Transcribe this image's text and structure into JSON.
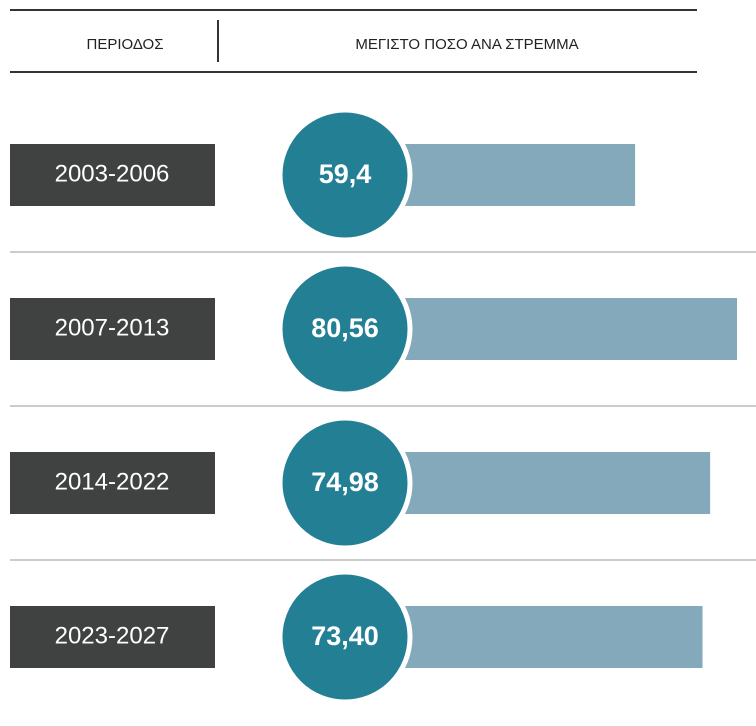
{
  "chart_data": {
    "type": "bar",
    "orientation": "horizontal",
    "column_headers": [
      "ΠΕΡΙΟΔΟΣ",
      "ΜΕΓΙΣΤΟ ΠΟΣΟ ΑΝΑ ΣΤΡΕΜΜΑ"
    ],
    "categories": [
      "2003-2006",
      "2007-2013",
      "2014-2022",
      "2023-2027"
    ],
    "values": [
      59.4,
      80.56,
      74.98,
      73.4
    ],
    "value_labels": [
      "59,4",
      "80,56",
      "74,98",
      "73,40"
    ],
    "color": "#84a9bb",
    "label_color": "#404141",
    "badge_color": "#237f94"
  }
}
